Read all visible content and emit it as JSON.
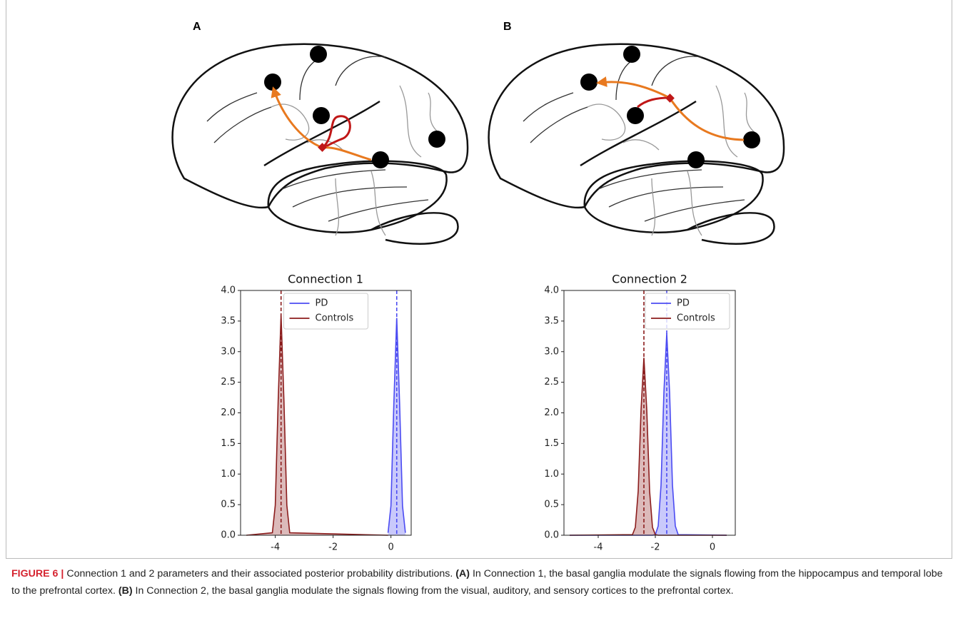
{
  "panels": [
    "A",
    "B"
  ],
  "chart_data": [
    {
      "type": "density",
      "title": "Connection 1",
      "x": [
        -5,
        -4.1,
        -4.0,
        -3.9,
        -3.8,
        -3.7,
        -3.6,
        -3.5,
        -0.1,
        0,
        0.1,
        0.2,
        0.3,
        0.4,
        0.5
      ],
      "series": [
        {
          "name": "PD",
          "color": "#4b4bf2",
          "mean": 0.2,
          "values": [
            null,
            null,
            null,
            null,
            null,
            null,
            null,
            null,
            0.04,
            0.48,
            2.15,
            3.55,
            2.15,
            0.48,
            0.04
          ]
        },
        {
          "name": "Controls",
          "color": "#8b1c1c",
          "mean": -3.8,
          "values": [
            0,
            0.04,
            0.49,
            2.19,
            3.6,
            2.19,
            0.49,
            0.04,
            0,
            null,
            null,
            null,
            null,
            null,
            null
          ]
        }
      ],
      "xlim": [
        -5.2,
        0.7
      ],
      "xticks": [
        -4,
        -2,
        0
      ],
      "ylim": [
        0,
        4
      ],
      "yticks": [
        {
          "value": 0,
          "label": "0.0"
        },
        0.5,
        {
          "value": 1,
          "label": "1.0"
        },
        1.5,
        {
          "value": 2,
          "label": "2.0"
        },
        2.5,
        {
          "value": 3,
          "label": "3.0"
        },
        3.5,
        {
          "value": 4,
          "label": "4.0"
        }
      ],
      "legend": "upper center"
    },
    {
      "type": "density",
      "title": "Connection 2",
      "x": [
        -5,
        -2.8,
        -2.7,
        -2.6,
        -2.5,
        -2.4,
        -2.3,
        -2.2,
        -2.1,
        -2.0,
        -1.9,
        -1.8,
        -1.7,
        -1.6,
        -1.5,
        -1.4,
        -1.3,
        -1.2,
        0.5
      ],
      "series": [
        {
          "name": "PD",
          "color": "#4b4bf2",
          "mean": -1.6,
          "values": [
            0,
            0,
            0,
            0,
            0,
            0,
            0,
            0,
            0,
            0.01,
            0.15,
            0.82,
            2.33,
            3.3,
            2.33,
            0.82,
            0.15,
            0.01,
            0
          ]
        },
        {
          "name": "Controls",
          "color": "#8b1c1c",
          "mean": -2.4,
          "values": [
            0,
            0.01,
            0.13,
            0.72,
            2.05,
            2.9,
            2.05,
            0.72,
            0.13,
            0.01,
            0,
            0,
            0,
            0,
            0,
            0,
            0,
            0,
            0
          ]
        }
      ],
      "xlim": [
        -5.2,
        0.8
      ],
      "xticks": [
        -4,
        -2,
        0
      ],
      "ylim": [
        0,
        4
      ],
      "yticks": [
        {
          "value": 0,
          "label": "0.0"
        },
        0.5,
        {
          "value": 1,
          "label": "1.0"
        },
        1.5,
        {
          "value": 2,
          "label": "2.0"
        },
        2.5,
        {
          "value": 3,
          "label": "3.0"
        },
        3.5,
        {
          "value": 4,
          "label": "4.0"
        }
      ],
      "legend": "upper right"
    }
  ],
  "caption": {
    "label": "FIGURE 6",
    "separator": "|",
    "text": "Connection 1 and 2 parameters and their associated posterior probability distributions.",
    "parts": [
      {
        "tag": "(A)",
        "text": "In Connection 1, the basal ganglia modulate the signals flowing from the hippocampus and temporal lobe to the prefrontal cortex."
      },
      {
        "tag": "(B)",
        "text": "In Connection 2, the basal ganglia modulate the signals flowing from the visual, auditory, and sensory cortices to the prefrontal cortex."
      }
    ]
  }
}
